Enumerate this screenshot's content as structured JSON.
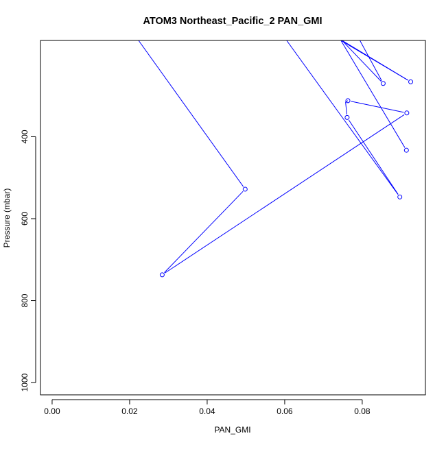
{
  "chart_data": {
    "type": "line",
    "title": "ATOM3 Northeast_Pacific_2 PAN_GMI",
    "xlabel": "PAN_GMI",
    "ylabel": "Pressure (mbar)",
    "xlim": [
      -0.003,
      0.0963
    ],
    "ylim": [
      1030,
      165
    ],
    "y_axis_reversed": true,
    "x_ticks": [
      "0.00",
      "0.02",
      "0.04",
      "0.06",
      "0.08"
    ],
    "x_tick_values": [
      0.0,
      0.02,
      0.04,
      0.06,
      0.08
    ],
    "y_ticks": [
      "400",
      "600",
      "800",
      "1000"
    ],
    "y_tick_values": [
      400,
      600,
      800,
      1000
    ],
    "grid": false,
    "series": [
      {
        "color": "#0000ff",
        "marker": "open-circle",
        "points": [
          {
            "x": 0.0223,
            "y": 165,
            "marker": false
          },
          {
            "x": 0.0498,
            "y": 528,
            "marker": true
          },
          {
            "x": 0.0284,
            "y": 737,
            "marker": true
          },
          {
            "x": 0.0915,
            "y": 342,
            "marker": true
          },
          {
            "x": 0.0763,
            "y": 312,
            "marker": true
          },
          {
            "x": 0.0757,
            "y": 315,
            "marker": false
          },
          {
            "x": 0.0761,
            "y": 353,
            "marker": true
          },
          {
            "x": 0.0897,
            "y": 547,
            "marker": true
          },
          {
            "x": 0.0605,
            "y": 165,
            "marker": false
          },
          {
            "x": 0.0794,
            "y": 165,
            "marker": false
          },
          {
            "x": 0.0854,
            "y": 270,
            "marker": true
          },
          {
            "x": 0.0748,
            "y": 165,
            "marker": false
          },
          {
            "x": 0.0925,
            "y": 266,
            "marker": true
          },
          {
            "x": 0.0745,
            "y": 165,
            "marker": false
          },
          {
            "x": 0.0914,
            "y": 433,
            "marker": true
          }
        ]
      }
    ]
  }
}
